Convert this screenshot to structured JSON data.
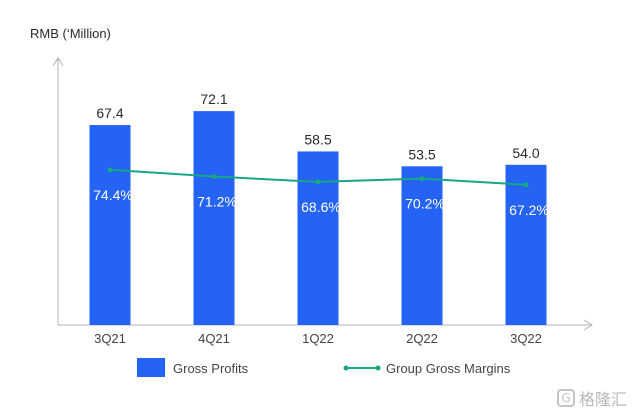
{
  "chart_data": {
    "type": "bar",
    "ylabel": "RMB (‘Million)",
    "categories": [
      "3Q21",
      "4Q21",
      "1Q22",
      "2Q22",
      "3Q22"
    ],
    "series": [
      {
        "name": "Gross Profits",
        "type": "bar",
        "values": [
          67.4,
          72.1,
          58.5,
          53.5,
          54.0
        ],
        "labels": [
          "67.4",
          "72.1",
          "58.5",
          "53.5",
          "54.0"
        ]
      },
      {
        "name": "Group Gross Margins",
        "type": "line",
        "values": [
          74.4,
          71.2,
          68.6,
          70.2,
          67.2
        ],
        "labels": [
          "74.4%",
          "71.2%",
          "68.6%",
          "70.2%",
          "67.2%"
        ]
      }
    ],
    "ylim": [
      0,
      90
    ],
    "line_ylim": [
      0,
      128
    ],
    "grid": false,
    "legend_position": "bottom",
    "colors": {
      "bar": "#2563f5",
      "line": "#16a883",
      "axis": "#aeb3bf",
      "text": "#2b2b2b",
      "tick": "#444444",
      "inner_label": "#ffffff"
    }
  },
  "watermark": {
    "icon": "watermark-logo-icon",
    "glyph": "G",
    "text": "格隆汇"
  }
}
